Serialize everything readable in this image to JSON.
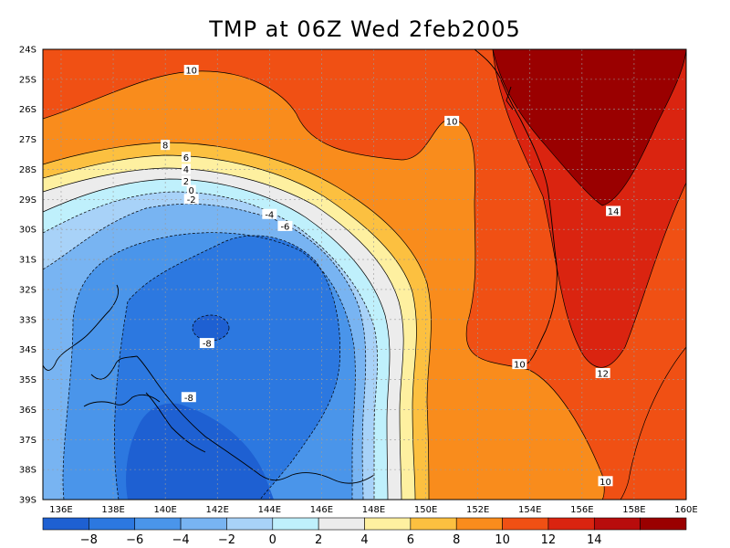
{
  "title": "TMP at 06Z Wed 2feb2005",
  "map": {
    "lat_labels": [
      "24S",
      "25S",
      "26S",
      "27S",
      "28S",
      "29S",
      "30S",
      "31S",
      "32S",
      "33S",
      "34S",
      "35S",
      "36S",
      "37S",
      "38S",
      "39S"
    ],
    "lon_labels": [
      "136E",
      "138E",
      "140E",
      "142E",
      "144E",
      "146E",
      "148E",
      "150E",
      "152E",
      "154E",
      "156E",
      "158E",
      "160E"
    ],
    "lat_range": [
      -39,
      -24
    ],
    "lon_range": [
      135.3,
      160
    ],
    "grid": "dotted"
  },
  "contour_labels": [
    {
      "text": "10",
      "lon": 141.0,
      "lat": -24.7
    },
    {
      "text": "10",
      "lon": 151.0,
      "lat": -26.4
    },
    {
      "text": "8",
      "lon": 140.0,
      "lat": -27.2
    },
    {
      "text": "6",
      "lon": 140.8,
      "lat": -27.6
    },
    {
      "text": "4",
      "lon": 140.8,
      "lat": -28.0
    },
    {
      "text": "2",
      "lon": 140.8,
      "lat": -28.4
    },
    {
      "text": "0",
      "lon": 141.0,
      "lat": -28.7
    },
    {
      "text": "-2",
      "lon": 141.0,
      "lat": -29.0
    },
    {
      "text": "-4",
      "lon": 144.0,
      "lat": -29.5
    },
    {
      "text": "-6",
      "lon": 144.6,
      "lat": -29.9
    },
    {
      "text": "14",
      "lon": 157.2,
      "lat": -29.4
    },
    {
      "text": "-8",
      "lon": 141.6,
      "lat": -33.8
    },
    {
      "text": "10",
      "lon": 153.6,
      "lat": -34.5
    },
    {
      "text": "12",
      "lon": 156.8,
      "lat": -34.8
    },
    {
      "text": "-8",
      "lon": 140.9,
      "lat": -35.6
    },
    {
      "text": "10",
      "lon": 156.9,
      "lat": -38.4
    }
  ],
  "colorbar": {
    "colors": [
      "#1e60d2",
      "#2c78e0",
      "#4a95ea",
      "#78b4f2",
      "#a8d2f8",
      "#bff0fc",
      "#ececec",
      "#fef0a0",
      "#fcc040",
      "#f98c1c",
      "#f05014",
      "#da2410",
      "#b80c0c",
      "#9a0000"
    ],
    "labels": [
      "−8",
      "−6",
      "−4",
      "−2",
      "0",
      "2",
      "4",
      "6",
      "8",
      "10",
      "12",
      "14"
    ]
  }
}
